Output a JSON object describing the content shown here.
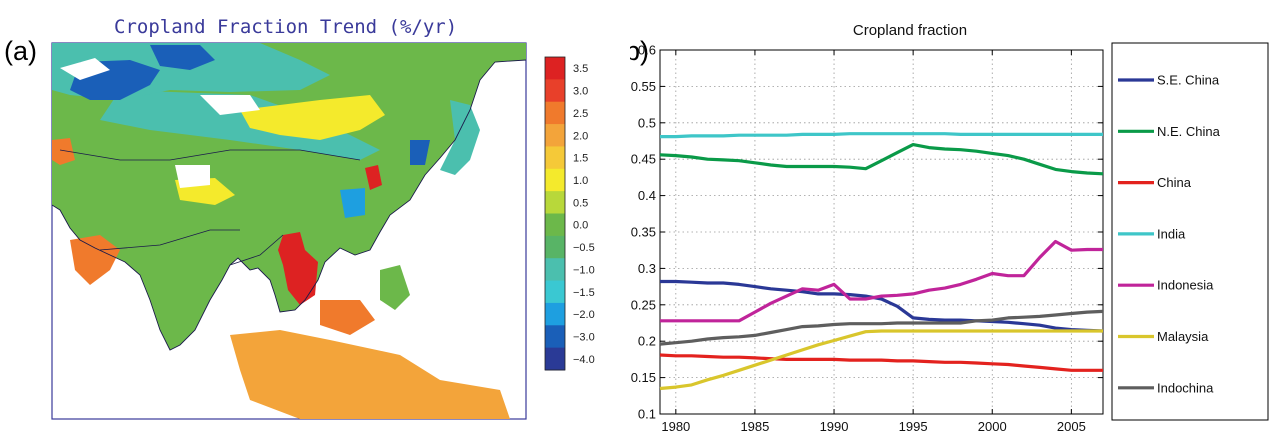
{
  "panel_a": {
    "label": "(a)",
    "title": "Cropland Fraction Trend (%/yr)",
    "colorbar": {
      "ticks": [
        "3.5",
        "3.0",
        "2.5",
        "2.0",
        "1.5",
        "1.0",
        "0.5",
        "0.0",
        "−0.5",
        "−1.0",
        "−1.5",
        "−2.0",
        "−3.0",
        "−4.0"
      ],
      "colors": [
        "#dd2222",
        "#e8402a",
        "#f07a2c",
        "#f3a43a",
        "#f5c938",
        "#f4ea2c",
        "#b8d83a",
        "#6cb84a",
        "#58b466",
        "#4bbfae",
        "#3ac8d2",
        "#1e9fe0",
        "#1a5fb8",
        "#2a3a96"
      ]
    }
  },
  "panel_b": {
    "label": "(b)",
    "chart_data": {
      "type": "line",
      "title": "Cropland fraction",
      "xlabel": "",
      "ylabel": "",
      "xlim": [
        1979,
        2007
      ],
      "ylim": [
        0.1,
        0.6
      ],
      "x_ticks": [
        1980,
        1985,
        1990,
        1995,
        2000,
        2005
      ],
      "y_ticks": [
        0.1,
        0.15,
        0.2,
        0.25,
        0.3,
        0.35,
        0.4,
        0.45,
        0.5,
        0.55,
        0.6
      ],
      "grid": true,
      "legend_position": "right-outside",
      "x": [
        1979,
        1980,
        1981,
        1982,
        1983,
        1984,
        1985,
        1986,
        1987,
        1988,
        1989,
        1990,
        1991,
        1992,
        1993,
        1994,
        1995,
        1996,
        1997,
        1998,
        1999,
        2000,
        2001,
        2002,
        2003,
        2004,
        2005,
        2006,
        2007
      ],
      "series": [
        {
          "name": "S.E. China",
          "color": "#2a3896",
          "values": [
            0.282,
            0.282,
            0.281,
            0.28,
            0.28,
            0.278,
            0.275,
            0.272,
            0.27,
            0.268,
            0.265,
            0.265,
            0.264,
            0.262,
            0.258,
            0.248,
            0.232,
            0.23,
            0.229,
            0.229,
            0.228,
            0.227,
            0.226,
            0.224,
            0.222,
            0.218,
            0.216,
            0.215,
            0.214
          ]
        },
        {
          "name": "N.E. China",
          "color": "#0a9a48",
          "values": [
            0.456,
            0.455,
            0.453,
            0.45,
            0.449,
            0.448,
            0.445,
            0.442,
            0.44,
            0.44,
            0.44,
            0.44,
            0.439,
            0.437,
            0.448,
            0.459,
            0.47,
            0.466,
            0.464,
            0.463,
            0.461,
            0.458,
            0.455,
            0.45,
            0.443,
            0.436,
            0.433,
            0.431,
            0.43
          ]
        },
        {
          "name": "China",
          "color": "#e3221e",
          "values": [
            0.181,
            0.18,
            0.18,
            0.179,
            0.178,
            0.178,
            0.177,
            0.176,
            0.175,
            0.175,
            0.175,
            0.175,
            0.174,
            0.174,
            0.174,
            0.173,
            0.173,
            0.172,
            0.171,
            0.171,
            0.17,
            0.169,
            0.168,
            0.166,
            0.164,
            0.162,
            0.16,
            0.16,
            0.16
          ]
        },
        {
          "name": "India",
          "color": "#3ec6c8",
          "values": [
            0.481,
            0.481,
            0.482,
            0.482,
            0.482,
            0.483,
            0.483,
            0.483,
            0.483,
            0.484,
            0.484,
            0.484,
            0.485,
            0.485,
            0.485,
            0.485,
            0.485,
            0.485,
            0.485,
            0.484,
            0.484,
            0.484,
            0.484,
            0.484,
            0.484,
            0.484,
            0.484,
            0.484,
            0.484
          ]
        },
        {
          "name": "Indonesia",
          "color": "#c0249a",
          "values": [
            0.228,
            0.228,
            0.228,
            0.228,
            0.228,
            0.228,
            0.24,
            0.252,
            0.262,
            0.272,
            0.27,
            0.278,
            0.258,
            0.258,
            0.262,
            0.263,
            0.265,
            0.27,
            0.273,
            0.278,
            0.285,
            0.293,
            0.29,
            0.29,
            0.315,
            0.337,
            0.325,
            0.326,
            0.326
          ]
        },
        {
          "name": "Malaysia",
          "color": "#d9c62c",
          "values": [
            0.135,
            0.137,
            0.14,
            0.147,
            0.153,
            0.16,
            0.167,
            0.174,
            0.181,
            0.188,
            0.195,
            0.201,
            0.207,
            0.213,
            0.214,
            0.214,
            0.214,
            0.214,
            0.214,
            0.214,
            0.214,
            0.214,
            0.214,
            0.214,
            0.214,
            0.214,
            0.214,
            0.214,
            0.214
          ]
        },
        {
          "name": "Indochina",
          "color": "#5e5e5e",
          "values": [
            0.196,
            0.198,
            0.2,
            0.203,
            0.205,
            0.206,
            0.208,
            0.212,
            0.216,
            0.22,
            0.221,
            0.223,
            0.224,
            0.224,
            0.224,
            0.225,
            0.225,
            0.225,
            0.225,
            0.225,
            0.228,
            0.229,
            0.232,
            0.233,
            0.234,
            0.236,
            0.238,
            0.24,
            0.241
          ]
        }
      ]
    }
  }
}
